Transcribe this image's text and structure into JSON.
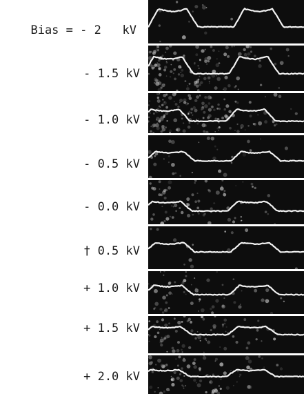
{
  "figure": {
    "rows": [
      {
        "label": "Bias = - 2   kV",
        "noise": 0.05
      },
      {
        "label": "- 1.5 kV",
        "noise": 0.55
      },
      {
        "label": "- 1.0 kV",
        "noise": 0.6
      },
      {
        "label": "- 0.5 kV",
        "noise": 0.12
      },
      {
        "label": "- 0.0 kV",
        "noise": 0.3
      },
      {
        "label": "† 0.5 kV",
        "noise": 0.05
      },
      {
        "label": "+ 1.0 kV",
        "noise": 0.25
      },
      {
        "label": "+ 1.5 kV",
        "noise": 0.3
      },
      {
        "label": "+ 2.0 kV",
        "noise": 0.35
      }
    ]
  }
}
